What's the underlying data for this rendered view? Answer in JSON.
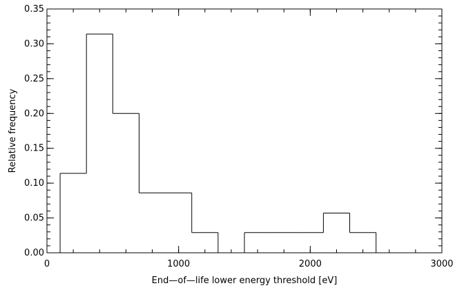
{
  "chart_data": {
    "type": "bar",
    "style": "step-histogram",
    "xlabel": "End—of—life lower energy threshold [eV]",
    "ylabel": "Relative frequency",
    "xlim": [
      0,
      3000
    ],
    "ylim": [
      0,
      0.35
    ],
    "x_major_ticks": [
      0,
      1000,
      2000,
      3000
    ],
    "x_tick_labels": [
      "0",
      "1000",
      "2000",
      "3000"
    ],
    "x_minor_step": 200,
    "y_major_ticks": [
      0,
      0.05,
      0.1,
      0.15,
      0.2,
      0.25,
      0.3,
      0.35
    ],
    "y_tick_labels": [
      "0.00",
      "0.05",
      "0.10",
      "0.15",
      "0.20",
      "0.25",
      "0.30",
      "0.35"
    ],
    "y_minor_step": 0.01,
    "grid": false,
    "line_color": "#000000",
    "bins": [
      {
        "x0": 100,
        "x1": 300,
        "value": 0.114
      },
      {
        "x0": 300,
        "x1": 500,
        "value": 0.314
      },
      {
        "x0": 500,
        "x1": 700,
        "value": 0.2
      },
      {
        "x0": 700,
        "x1": 900,
        "value": 0.086
      },
      {
        "x0": 900,
        "x1": 1100,
        "value": 0.086
      },
      {
        "x0": 1100,
        "x1": 1300,
        "value": 0.029
      },
      {
        "x0": 1300,
        "x1": 1500,
        "value": 0
      },
      {
        "x0": 1500,
        "x1": 1700,
        "value": 0.029
      },
      {
        "x0": 1700,
        "x1": 1900,
        "value": 0.029
      },
      {
        "x0": 1900,
        "x1": 2100,
        "value": 0.029
      },
      {
        "x0": 2100,
        "x1": 2300,
        "value": 0.057
      },
      {
        "x0": 2300,
        "x1": 2500,
        "value": 0.029
      }
    ]
  }
}
